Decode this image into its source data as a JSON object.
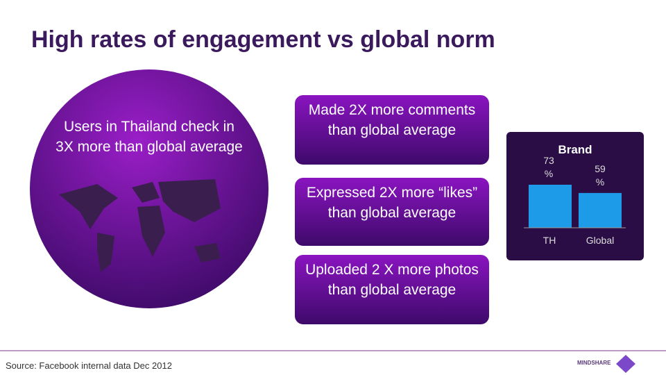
{
  "header": {
    "title": "High rates of engagement vs global norm"
  },
  "circle": {
    "text": "Users in Thailand check in 3X more than global average"
  },
  "boxes": [
    "Made 2X more comments than global average",
    "Expressed 2X more “likes” than global average",
    "Uploaded 2 X more photos than global average"
  ],
  "chart_data": {
    "type": "bar",
    "title": "Brand",
    "categories": [
      "TH",
      "Global"
    ],
    "values": [
      73,
      59
    ],
    "value_labels": [
      "73 %",
      "59 %"
    ],
    "color": "#1e9be8"
  },
  "footer": {
    "source": "Source: Facebook internal data Dec 2012",
    "logo": "MINDSHARE"
  }
}
